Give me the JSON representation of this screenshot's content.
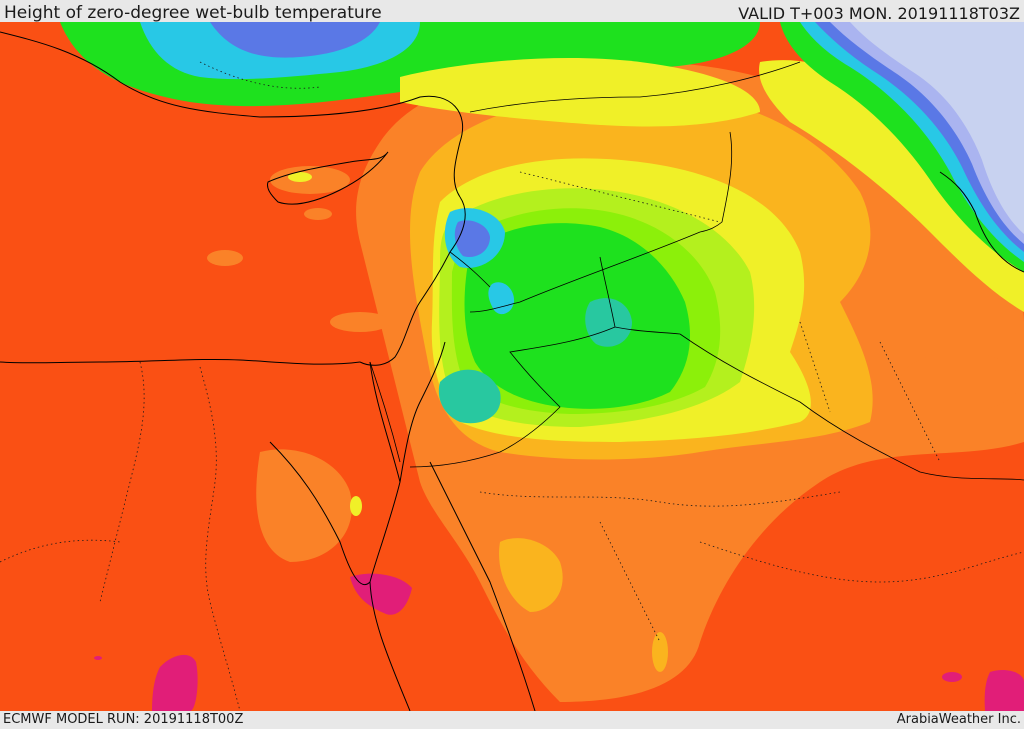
{
  "header": {
    "title": "Height of zero-degree wet-bulb temperature",
    "valid": "VALID T+003 MON. 20191118T03Z"
  },
  "footer": {
    "model_run": "ECMWF MODEL RUN: 20191118T00Z",
    "credit": "ArabiaWeather Inc."
  },
  "palette": {
    "red_orange": "#fa5014",
    "orange": "#fa8228",
    "amber": "#fab41e",
    "yellow": "#f0f028",
    "yellow_green": "#b4f01e",
    "lime": "#8cf00a",
    "green": "#1ee11e",
    "teal": "#28c8a0",
    "cyan": "#28c8e6",
    "blue": "#5a78e6",
    "lavender": "#aab4f0",
    "pale_lavender": "#c8d2f0",
    "magenta": "#e11e78",
    "borders": "#000000"
  }
}
